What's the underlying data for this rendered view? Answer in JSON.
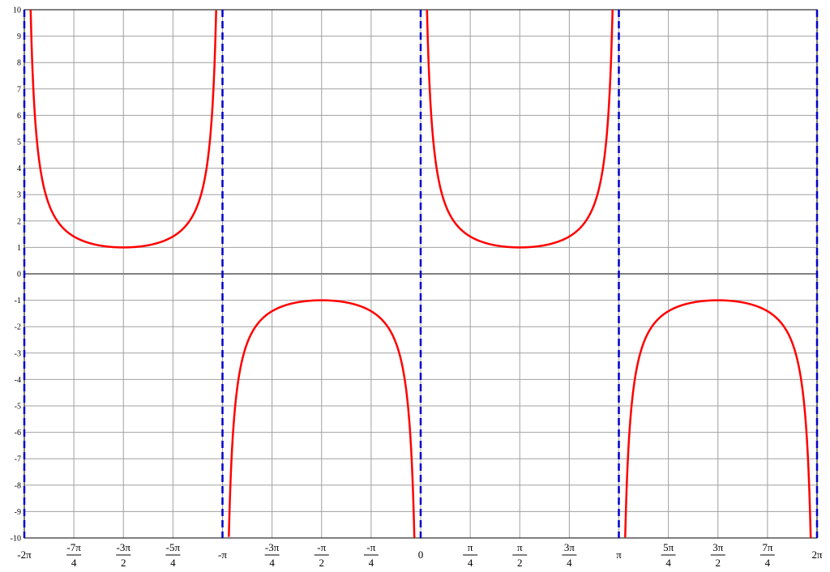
{
  "chart_data": {
    "type": "line",
    "title": "",
    "xlabel": "",
    "ylabel": "",
    "function": "csc(x)",
    "xlim": [
      -6.2832,
      6.2832
    ],
    "ylim": [
      -10,
      10
    ],
    "grid": true,
    "colors": {
      "curve": "#ff0000",
      "asymptote": "#0000cc",
      "grid": "#a0a0a0",
      "axis": "#808080"
    },
    "y_ticks": [
      {
        "value": 10,
        "label": "10"
      },
      {
        "value": 9,
        "label": "9"
      },
      {
        "value": 8,
        "label": "8"
      },
      {
        "value": 7,
        "label": "7"
      },
      {
        "value": 6,
        "label": "6"
      },
      {
        "value": 5,
        "label": "5"
      },
      {
        "value": 4,
        "label": "4"
      },
      {
        "value": 3,
        "label": "3"
      },
      {
        "value": 2,
        "label": "2"
      },
      {
        "value": 1,
        "label": "1"
      },
      {
        "value": 0,
        "label": "0"
      },
      {
        "value": -1,
        "label": "-1"
      },
      {
        "value": -2,
        "label": "-2"
      },
      {
        "value": -3,
        "label": "-3"
      },
      {
        "value": -4,
        "label": "-4"
      },
      {
        "value": -5,
        "label": "-5"
      },
      {
        "value": -6,
        "label": "-6"
      },
      {
        "value": -7,
        "label": "-7"
      },
      {
        "value": -8,
        "label": "-8"
      },
      {
        "value": -9,
        "label": "-9"
      },
      {
        "value": -10,
        "label": "-10"
      }
    ],
    "x_ticks": [
      {
        "value": -6.2832,
        "label": "-2π",
        "num": "",
        "den": ""
      },
      {
        "value": -5.4978,
        "label": "",
        "num": "-7π",
        "den": "4"
      },
      {
        "value": -4.7124,
        "label": "",
        "num": "-3π",
        "den": "2"
      },
      {
        "value": -3.927,
        "label": "",
        "num": "-5π",
        "den": "4"
      },
      {
        "value": -3.1416,
        "label": "-π",
        "num": "",
        "den": ""
      },
      {
        "value": -2.3562,
        "label": "",
        "num": "-3π",
        "den": "4"
      },
      {
        "value": -1.5708,
        "label": "",
        "num": "-π",
        "den": "2"
      },
      {
        "value": -0.7854,
        "label": "",
        "num": "-π",
        "den": "4"
      },
      {
        "value": 0,
        "label": "0",
        "num": "",
        "den": ""
      },
      {
        "value": 0.7854,
        "label": "",
        "num": "π",
        "den": "4"
      },
      {
        "value": 1.5708,
        "label": "",
        "num": "π",
        "den": "2"
      },
      {
        "value": 2.3562,
        "label": "",
        "num": "3π",
        "den": "4"
      },
      {
        "value": 3.1416,
        "label": "π",
        "num": "",
        "den": ""
      },
      {
        "value": 3.927,
        "label": "",
        "num": "5π",
        "den": "4"
      },
      {
        "value": 4.7124,
        "label": "",
        "num": "3π",
        "den": "2"
      },
      {
        "value": 5.4978,
        "label": "",
        "num": "7π",
        "den": "4"
      },
      {
        "value": 6.2832,
        "label": "2π",
        "num": "",
        "den": ""
      }
    ],
    "asymptotes": [
      -6.2832,
      -3.1416,
      0,
      3.1416,
      6.2832
    ],
    "series": [
      {
        "x": [
          -6.183,
          -5.98,
          -5.75,
          -5.498,
          -5.2,
          -4.9,
          -4.712,
          -4.5,
          -4.2,
          -3.927,
          -3.6,
          -3.35,
          -3.242
        ],
        "y": [
          10.0,
          3.36,
          1.96,
          1.414,
          1.13,
          1.02,
          1.0,
          1.02,
          1.15,
          1.414,
          2.26,
          4.86,
          9.97
        ]
      },
      {
        "x": [
          -3.041,
          -2.9,
          -2.6,
          -2.356,
          -2.0,
          -1.571,
          -1.2,
          -0.785,
          -0.5,
          -0.3,
          -0.1
        ],
        "y": [
          -10.0,
          -4.2,
          -1.94,
          -1.414,
          -1.1,
          -1.0,
          -1.07,
          -1.414,
          -2.09,
          -3.38,
          -10.0
        ]
      },
      {
        "x": [
          0.1,
          0.3,
          0.5,
          0.785,
          1.2,
          1.571,
          2.0,
          2.356,
          2.6,
          2.9,
          3.042
        ],
        "y": [
          10.0,
          3.38,
          2.09,
          1.414,
          1.07,
          1.0,
          1.1,
          1.414,
          1.94,
          4.2,
          10.0
        ]
      },
      {
        "x": [
          3.242,
          3.35,
          3.6,
          3.927,
          4.2,
          4.5,
          4.712,
          4.9,
          5.2,
          5.498,
          5.75,
          5.98,
          6.183
        ],
        "y": [
          -9.97,
          -4.86,
          -2.26,
          -1.414,
          -1.15,
          -1.02,
          -1.0,
          -1.02,
          -1.13,
          -1.414,
          -1.96,
          -3.36,
          -10.0
        ]
      }
    ]
  }
}
